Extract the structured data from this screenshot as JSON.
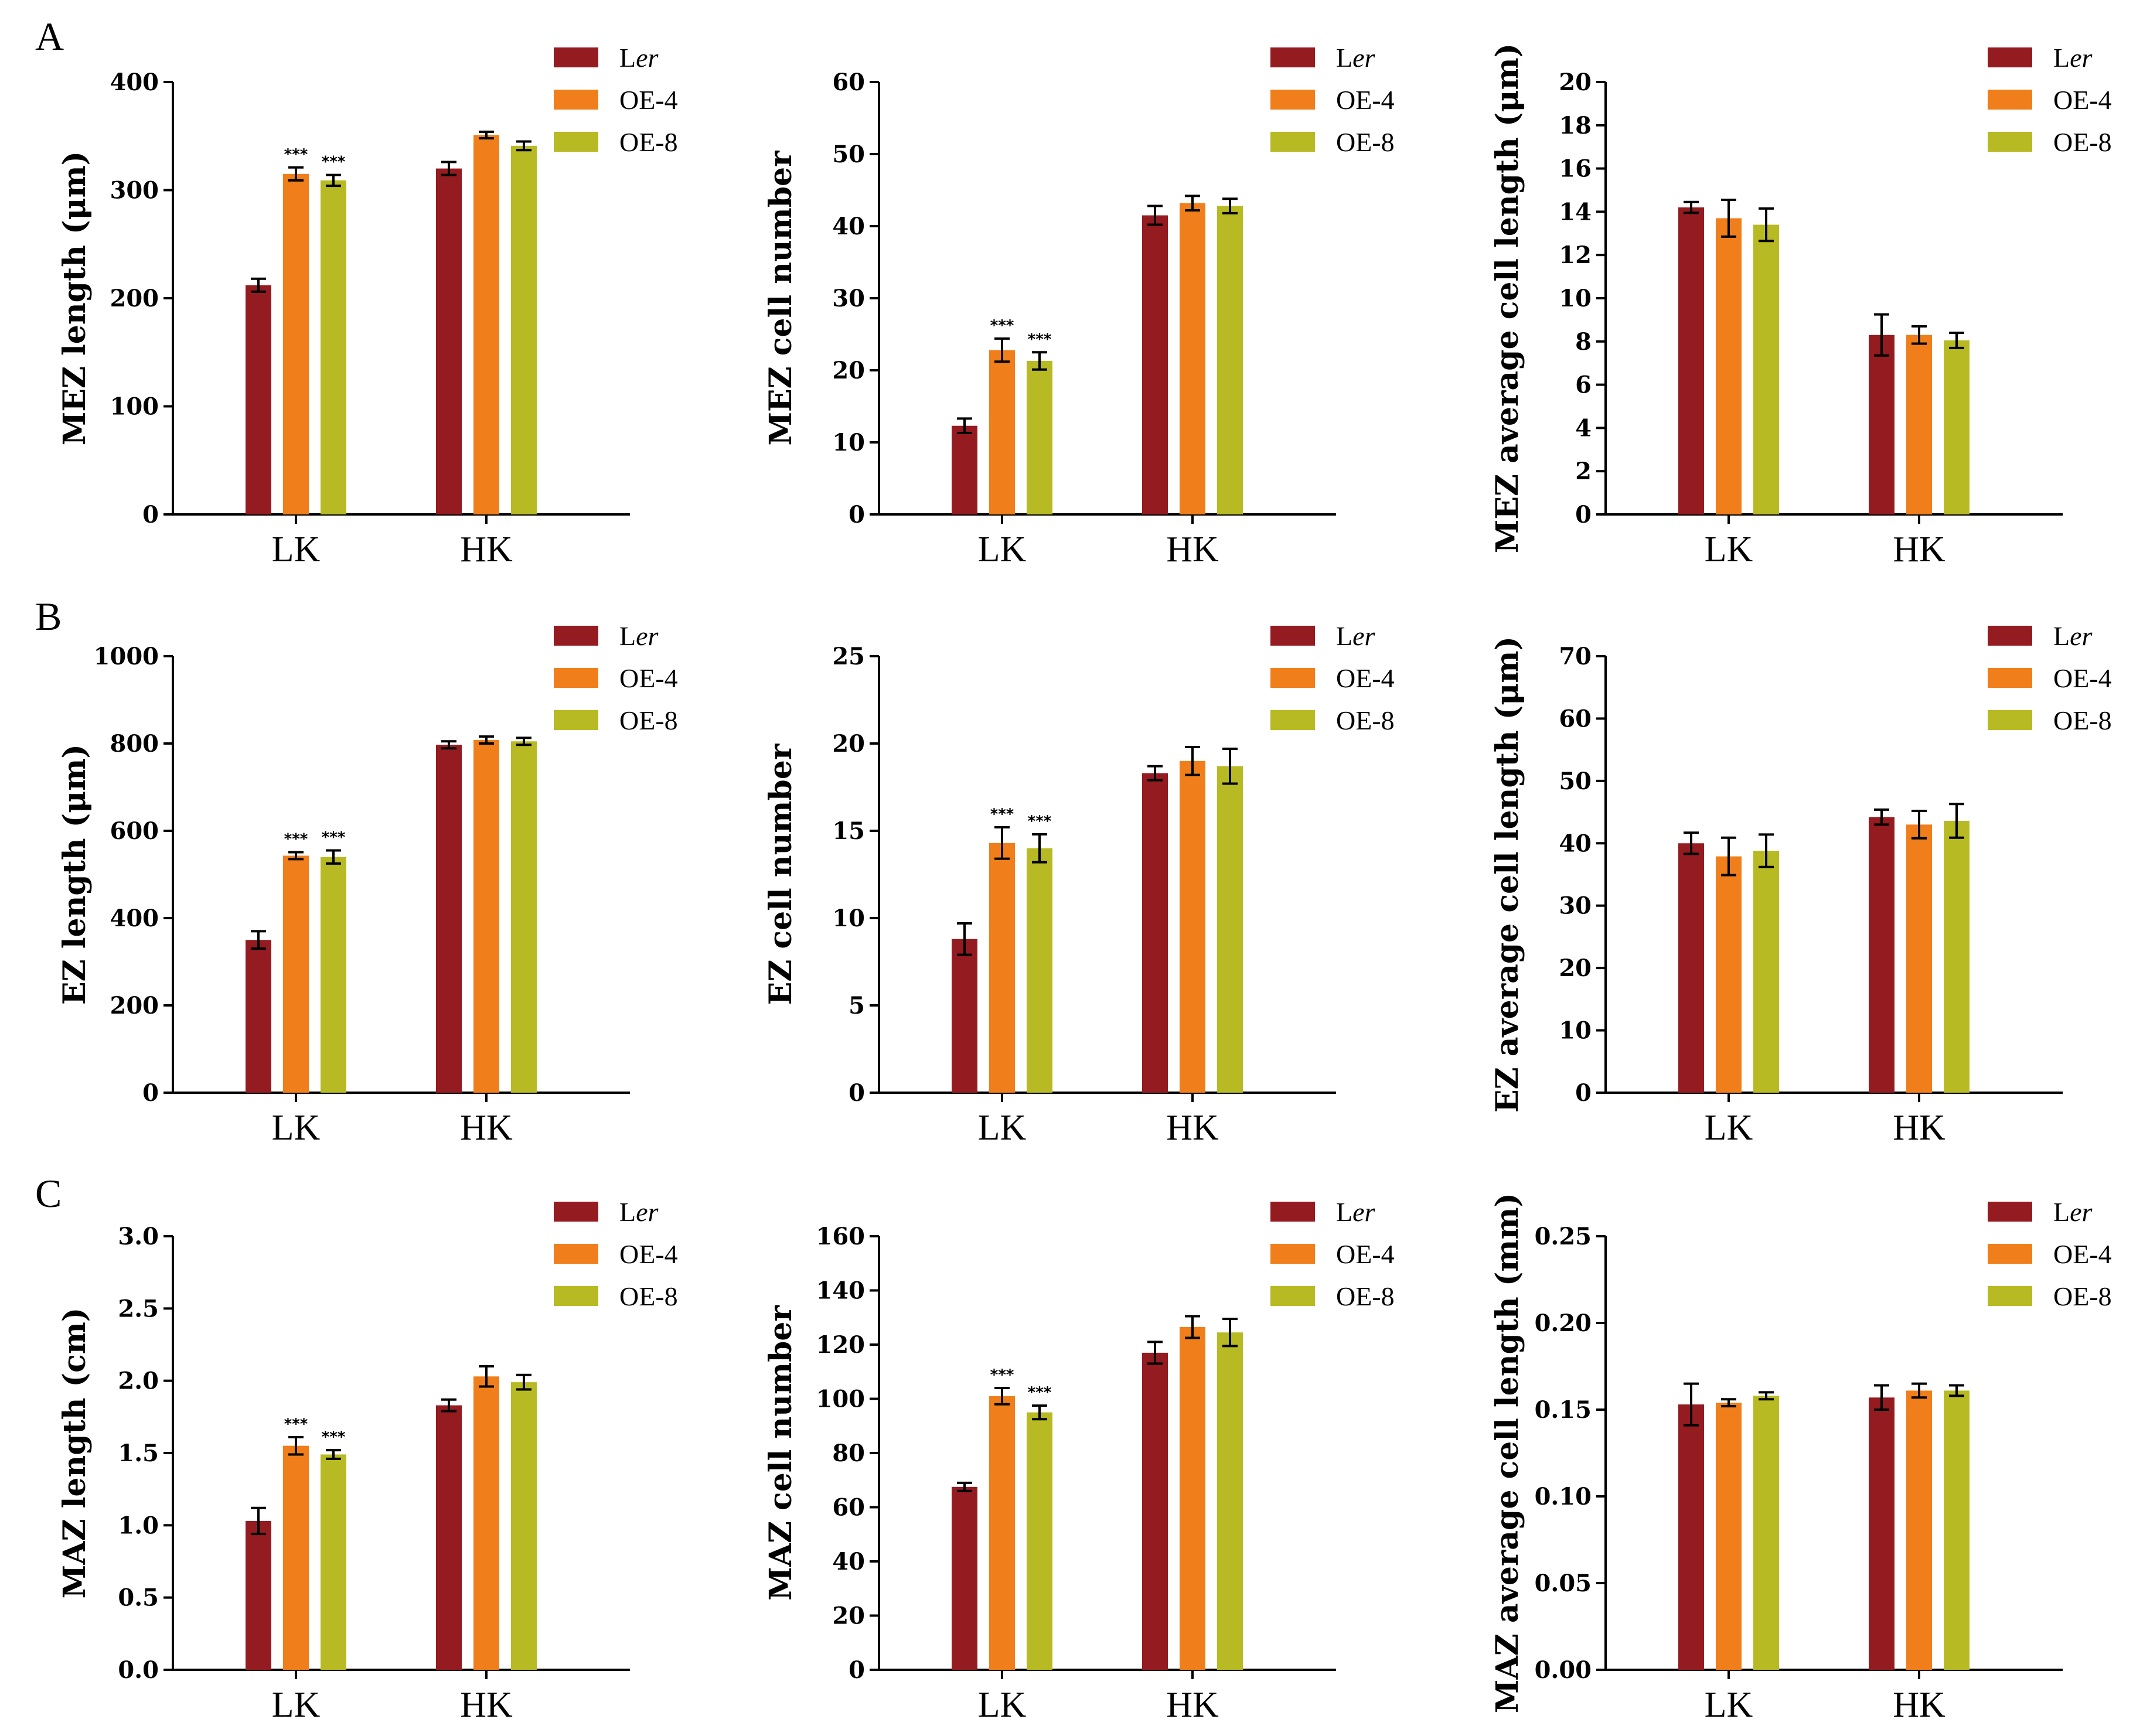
{
  "colors": {
    "Ler": "#941b20",
    "OE-4": "#f07f1b",
    "OE-8": "#b7ba22"
  },
  "legend": [
    {
      "key": "Ler",
      "prefix": "L",
      "italic": "er"
    },
    {
      "key": "OE-4",
      "prefix": "OE-4",
      "italic": ""
    },
    {
      "key": "OE-8",
      "prefix": "OE-8",
      "italic": ""
    }
  ],
  "panel_labels": [
    "A",
    "B",
    "C"
  ],
  "chart_data": [
    {
      "type": "bar",
      "row": 0,
      "col": 0,
      "ylabel": "MEZ length (μm)",
      "ylim": [
        0,
        400
      ],
      "ticks": [
        0,
        100,
        200,
        300,
        400
      ],
      "tick_labels": [
        "0",
        "100",
        "200",
        "300",
        "400"
      ],
      "categories": [
        "LK",
        "HK"
      ],
      "series": [
        {
          "name": "Ler",
          "values": [
            212,
            320
          ],
          "errors": [
            6,
            6
          ],
          "sig": [
            "",
            ""
          ]
        },
        {
          "name": "OE-4",
          "values": [
            315,
            351
          ],
          "errors": [
            6,
            3
          ],
          "sig": [
            "***",
            ""
          ]
        },
        {
          "name": "OE-8",
          "values": [
            309,
            341
          ],
          "errors": [
            5,
            4
          ],
          "sig": [
            "***",
            ""
          ]
        }
      ]
    },
    {
      "type": "bar",
      "row": 0,
      "col": 1,
      "ylabel": "MEZ cell number",
      "ylim": [
        0,
        60
      ],
      "ticks": [
        0,
        10,
        20,
        30,
        40,
        50,
        60
      ],
      "tick_labels": [
        "0",
        "10",
        "20",
        "30",
        "40",
        "50",
        "60"
      ],
      "categories": [
        "LK",
        "HK"
      ],
      "series": [
        {
          "name": "Ler",
          "values": [
            12.3,
            41.5
          ],
          "errors": [
            1.0,
            1.3
          ],
          "sig": [
            "",
            ""
          ]
        },
        {
          "name": "OE-4",
          "values": [
            22.8,
            43.2
          ],
          "errors": [
            1.6,
            1.0
          ],
          "sig": [
            "***",
            ""
          ]
        },
        {
          "name": "OE-8",
          "values": [
            21.3,
            42.8
          ],
          "errors": [
            1.2,
            1.0
          ],
          "sig": [
            "***",
            ""
          ]
        }
      ]
    },
    {
      "type": "bar",
      "row": 0,
      "col": 2,
      "ylabel": "MEZ average cell length (μm)",
      "ylim": [
        0,
        20
      ],
      "ticks": [
        0,
        2,
        4,
        6,
        8,
        10,
        12,
        14,
        16,
        18,
        20
      ],
      "tick_labels": [
        "0",
        "2",
        "4",
        "6",
        "8",
        "10",
        "12",
        "14",
        "16",
        "18",
        "20"
      ],
      "categories": [
        "LK",
        "HK"
      ],
      "series": [
        {
          "name": "Ler",
          "values": [
            14.2,
            8.3
          ],
          "errors": [
            0.25,
            0.95
          ],
          "sig": [
            "",
            ""
          ]
        },
        {
          "name": "OE-4",
          "values": [
            13.7,
            8.3
          ],
          "errors": [
            0.85,
            0.4
          ],
          "sig": [
            "",
            ""
          ]
        },
        {
          "name": "OE-8",
          "values": [
            13.4,
            8.05
          ],
          "errors": [
            0.75,
            0.35
          ],
          "sig": [
            "",
            ""
          ]
        }
      ]
    },
    {
      "type": "bar",
      "row": 1,
      "col": 0,
      "ylabel": "EZ length (μm)",
      "ylim": [
        0,
        1000
      ],
      "ticks": [
        0,
        200,
        400,
        600,
        800,
        1000
      ],
      "tick_labels": [
        "0",
        "200",
        "400",
        "600",
        "800",
        "1000"
      ],
      "categories": [
        "LK",
        "HK"
      ],
      "series": [
        {
          "name": "Ler",
          "values": [
            350,
            797
          ],
          "errors": [
            20,
            8
          ],
          "sig": [
            "",
            ""
          ]
        },
        {
          "name": "OE-4",
          "values": [
            543,
            808
          ],
          "errors": [
            8,
            8
          ],
          "sig": [
            "***",
            ""
          ]
        },
        {
          "name": "OE-8",
          "values": [
            540,
            805
          ],
          "errors": [
            15,
            8
          ],
          "sig": [
            "***",
            ""
          ]
        }
      ]
    },
    {
      "type": "bar",
      "row": 1,
      "col": 1,
      "ylabel": "EZ cell number",
      "ylim": [
        0,
        25
      ],
      "ticks": [
        0,
        5,
        10,
        15,
        20,
        25
      ],
      "tick_labels": [
        "0",
        "5",
        "10",
        "15",
        "20",
        "25"
      ],
      "categories": [
        "LK",
        "HK"
      ],
      "series": [
        {
          "name": "Ler",
          "values": [
            8.8,
            18.3
          ],
          "errors": [
            0.9,
            0.4
          ],
          "sig": [
            "",
            ""
          ]
        },
        {
          "name": "OE-4",
          "values": [
            14.3,
            19.0
          ],
          "errors": [
            0.9,
            0.8
          ],
          "sig": [
            "***",
            ""
          ]
        },
        {
          "name": "OE-8",
          "values": [
            14.0,
            18.7
          ],
          "errors": [
            0.8,
            1.0
          ],
          "sig": [
            "***",
            ""
          ]
        }
      ]
    },
    {
      "type": "bar",
      "row": 1,
      "col": 2,
      "ylabel": "EZ average cell length (μm)",
      "ylim": [
        0,
        70
      ],
      "ticks": [
        0,
        10,
        20,
        30,
        40,
        50,
        60,
        70
      ],
      "tick_labels": [
        "0",
        "10",
        "20",
        "30",
        "40",
        "50",
        "60",
        "70"
      ],
      "categories": [
        "LK",
        "HK"
      ],
      "series": [
        {
          "name": "Ler",
          "values": [
            40.0,
            44.2
          ],
          "errors": [
            1.7,
            1.2
          ],
          "sig": [
            "",
            ""
          ]
        },
        {
          "name": "OE-4",
          "values": [
            37.9,
            43.0
          ],
          "errors": [
            3.0,
            2.2
          ],
          "sig": [
            "",
            ""
          ]
        },
        {
          "name": "OE-8",
          "values": [
            38.8,
            43.6
          ],
          "errors": [
            2.6,
            2.7
          ],
          "sig": [
            "",
            ""
          ]
        }
      ]
    },
    {
      "type": "bar",
      "row": 2,
      "col": 0,
      "ylabel": "MAZ length (cm)",
      "ylim": [
        0,
        3.0
      ],
      "ticks": [
        0,
        0.5,
        1.0,
        1.5,
        2.0,
        2.5,
        3.0
      ],
      "tick_labels": [
        "0.0",
        "0.5",
        "1.0",
        "1.5",
        "2.0",
        "2.5",
        "3.0"
      ],
      "categories": [
        "LK",
        "HK"
      ],
      "series": [
        {
          "name": "Ler",
          "values": [
            1.03,
            1.83
          ],
          "errors": [
            0.09,
            0.04
          ],
          "sig": [
            "",
            ""
          ]
        },
        {
          "name": "OE-4",
          "values": [
            1.55,
            2.03
          ],
          "errors": [
            0.06,
            0.07
          ],
          "sig": [
            "***",
            ""
          ]
        },
        {
          "name": "OE-8",
          "values": [
            1.49,
            1.99
          ],
          "errors": [
            0.03,
            0.05
          ],
          "sig": [
            "***",
            ""
          ]
        }
      ]
    },
    {
      "type": "bar",
      "row": 2,
      "col": 1,
      "ylabel": "MAZ cell number",
      "ylim": [
        0,
        160
      ],
      "ticks": [
        0,
        20,
        40,
        60,
        80,
        100,
        120,
        140,
        160
      ],
      "tick_labels": [
        "0",
        "20",
        "40",
        "60",
        "80",
        "100",
        "120",
        "140",
        "160"
      ],
      "categories": [
        "LK",
        "HK"
      ],
      "series": [
        {
          "name": "Ler",
          "values": [
            67.5,
            117
          ],
          "errors": [
            1.5,
            4
          ],
          "sig": [
            "",
            ""
          ]
        },
        {
          "name": "OE-4",
          "values": [
            101,
            126.5
          ],
          "errors": [
            3,
            4
          ],
          "sig": [
            "***",
            ""
          ]
        },
        {
          "name": "OE-8",
          "values": [
            95,
            124.5
          ],
          "errors": [
            2.5,
            5
          ],
          "sig": [
            "***",
            ""
          ]
        }
      ]
    },
    {
      "type": "bar",
      "row": 2,
      "col": 2,
      "ylabel": "MAZ average cell length (mm)",
      "ylim": [
        0,
        0.25
      ],
      "ticks": [
        0,
        0.05,
        0.1,
        0.15,
        0.2,
        0.25
      ],
      "tick_labels": [
        "0.00",
        "0.05",
        "0.10",
        "0.15",
        "0.20",
        "0.25"
      ],
      "categories": [
        "LK",
        "HK"
      ],
      "series": [
        {
          "name": "Ler",
          "values": [
            0.153,
            0.157
          ],
          "errors": [
            0.012,
            0.007
          ],
          "sig": [
            "",
            ""
          ]
        },
        {
          "name": "OE-4",
          "values": [
            0.154,
            0.161
          ],
          "errors": [
            0.002,
            0.004
          ],
          "sig": [
            "",
            ""
          ]
        },
        {
          "name": "OE-8",
          "values": [
            0.158,
            0.161
          ],
          "errors": [
            0.002,
            0.003
          ],
          "sig": [
            "",
            ""
          ]
        }
      ]
    }
  ]
}
